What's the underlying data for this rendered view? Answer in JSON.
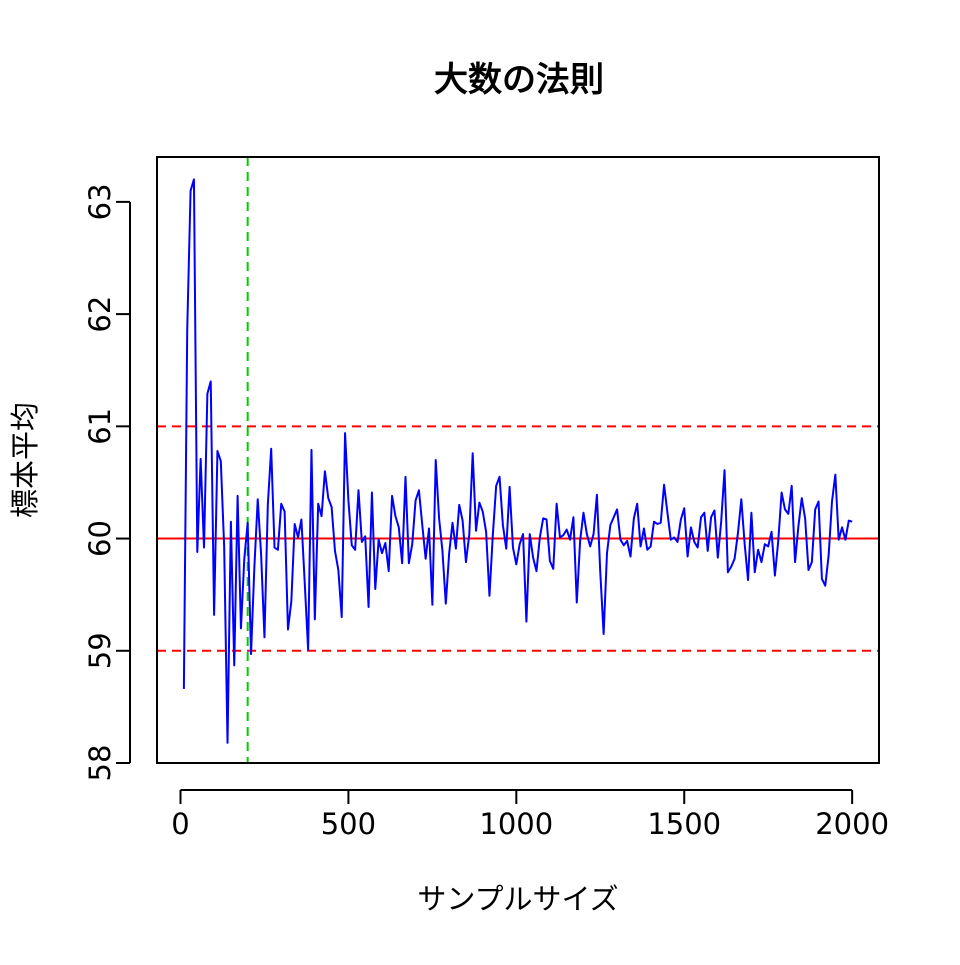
{
  "chart_data": {
    "type": "line",
    "title": "大数の法則",
    "xlabel": "サンプルサイズ",
    "ylabel": "標本平均",
    "xlim": [
      -70,
      2080
    ],
    "ylim": [
      58,
      63.4
    ],
    "x_ticks": [
      0,
      500,
      1000,
      1500,
      2000
    ],
    "y_ticks": [
      58,
      59,
      60,
      61,
      62,
      63
    ],
    "grid": false,
    "legend": "none",
    "colors": {
      "series": "#0000ff",
      "mean_line": "#ff0000",
      "band_lines": "#ff0000",
      "marker_line": "#00cc00"
    },
    "reference_lines": {
      "true_mean": 60,
      "band": [
        59,
        61
      ],
      "vertical_marker_x": 200
    },
    "series": [
      {
        "x_start": 10,
        "x_step": 10,
        "values": [
          58.66,
          61.86,
          63.1,
          63.2,
          59.88,
          60.71,
          59.92,
          61.29,
          61.4,
          59.32,
          60.78,
          60.69,
          59.93,
          58.18,
          60.15,
          58.87,
          60.38,
          59.2,
          59.82,
          60.14,
          58.97,
          59.75,
          60.35,
          59.86,
          59.12,
          60.3,
          60.8,
          59.92,
          59.9,
          60.31,
          60.24,
          59.19,
          59.44,
          60.13,
          60.01,
          60.17,
          59.6,
          59.01,
          60.79,
          59.28,
          60.31,
          60.2,
          60.6,
          60.36,
          60.28,
          59.89,
          59.72,
          59.3,
          60.94,
          60.34,
          59.94,
          59.9,
          60.43,
          59.97,
          60.02,
          59.39,
          60.41,
          59.55,
          59.99,
          59.87,
          59.96,
          59.71,
          60.38,
          60.2,
          60.1,
          59.78,
          60.55,
          59.78,
          59.95,
          60.34,
          60.43,
          60.12,
          59.82,
          60.09,
          59.41,
          60.7,
          60.18,
          59.89,
          59.42,
          59.87,
          60.14,
          59.91,
          60.3,
          60.16,
          59.79,
          60.04,
          60.76,
          60.07,
          60.32,
          60.24,
          60.06,
          59.49,
          60.03,
          60.47,
          60.55,
          60.12,
          59.91,
          60.46,
          59.92,
          59.77,
          59.95,
          60.04,
          59.26,
          60.04,
          59.83,
          59.71,
          60.01,
          60.18,
          60.17,
          59.8,
          59.73,
          60.31,
          60.01,
          60.03,
          60.08,
          59.99,
          60.19,
          59.43,
          59.98,
          60.23,
          60.04,
          59.93,
          60.04,
          60.39,
          59.7,
          59.15,
          59.87,
          60.12,
          60.19,
          60.26,
          59.99,
          59.94,
          59.98,
          59.84,
          60.18,
          60.31,
          59.93,
          60.09,
          59.9,
          59.93,
          60.15,
          60.13,
          60.14,
          60.48,
          60.23,
          59.99,
          60.01,
          59.97,
          60.17,
          60.27,
          59.84,
          60.1,
          59.97,
          59.92,
          60.19,
          60.23,
          59.89,
          60.19,
          60.25,
          59.83,
          60.15,
          60.61,
          59.7,
          59.75,
          59.82,
          60.05,
          60.35,
          59.95,
          59.63,
          60.23,
          59.7,
          59.9,
          59.79,
          59.95,
          59.93,
          60.06,
          59.67,
          59.98,
          60.41,
          60.26,
          60.22,
          60.47,
          59.79,
          60.11,
          60.36,
          60.18,
          59.72,
          59.79,
          60.26,
          60.33,
          59.64,
          59.58,
          59.85,
          60.33,
          60.57,
          59.99,
          60.1,
          59.99,
          60.16,
          60.15
        ]
      }
    ]
  }
}
